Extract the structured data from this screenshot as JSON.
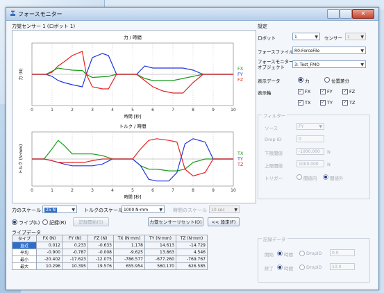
{
  "window": {
    "title": "フォースモニター",
    "close_label": "✕"
  },
  "left": {
    "heading": "力覚センサー 1 (ロボット 1)"
  },
  "chart_data": [
    {
      "type": "line",
      "title": "力 / 時間",
      "xlabel": "時間 [秒]",
      "ylabel": "力 (N)",
      "xlim": [
        0,
        10
      ],
      "x_ticks": [
        "0",
        "1",
        "2",
        "3",
        "4",
        "5",
        "6",
        "7",
        "8",
        "9",
        "10"
      ],
      "ylim": [
        -15,
        15
      ],
      "series": [
        {
          "name": "FX",
          "color": "#1a9a1a",
          "x": [
            0,
            0.7,
            1.0,
            1.3,
            1.6,
            2.0,
            2.5,
            2.7,
            3.0,
            3.5,
            3.8,
            4.2,
            4.8,
            5.2,
            5.6,
            6.0,
            6.5,
            7.0,
            7.5,
            8.0,
            8.5,
            9.0,
            10
          ],
          "y": [
            0,
            0,
            1.5,
            3,
            2.5,
            2,
            1.8,
            0,
            -1.5,
            -1.2,
            -1,
            0,
            0,
            0,
            -2,
            -3,
            -3,
            -3,
            -2,
            -1,
            0,
            0,
            0
          ]
        },
        {
          "name": "FY",
          "color": "#2233dd",
          "x": [
            0,
            0.7,
            1.0,
            1.3,
            1.6,
            2.0,
            2.5,
            2.7,
            3.0,
            3.5,
            3.8,
            4.2,
            4.8,
            5.2,
            5.6,
            6.0,
            6.5,
            7.0,
            7.5,
            8.0,
            8.5,
            9.0,
            10
          ],
          "y": [
            0,
            0,
            -1,
            -3,
            -4,
            -5,
            -6,
            0,
            8,
            10,
            9,
            0,
            0,
            0,
            4,
            3,
            3,
            3,
            3,
            2,
            0,
            0,
            0
          ]
        },
        {
          "name": "FZ",
          "color": "#e42222",
          "x": [
            0,
            0.7,
            1.0,
            1.3,
            1.6,
            2.0,
            2.5,
            2.7,
            3.0,
            3.5,
            3.8,
            4.2,
            4.8,
            5.2,
            5.6,
            6.0,
            6.5,
            7.0,
            7.5,
            8.0,
            8.5,
            9.0,
            10
          ],
          "y": [
            0,
            0,
            1,
            4,
            6,
            9,
            11,
            0,
            -6,
            -7,
            -7,
            0,
            0,
            0,
            -3,
            -6,
            -8,
            -9,
            -9,
            -4,
            0,
            0,
            0
          ]
        }
      ]
    },
    {
      "type": "line",
      "title": "トルク / 時間",
      "xlabel": "時間 [秒]",
      "ylabel": "トルク (N·mm)",
      "xlim": [
        0,
        10
      ],
      "x_ticks": [
        "0",
        "1",
        "2",
        "3",
        "4",
        "5",
        "6",
        "7",
        "8",
        "9",
        "10"
      ],
      "ylim": [
        -800,
        800
      ],
      "series": [
        {
          "name": "TX",
          "color": "#1a9a1a",
          "x": [
            0,
            0.6,
            1.0,
            1.3,
            1.6,
            2.0,
            2.6,
            3.0,
            3.5,
            4.0,
            4.5,
            5.0,
            5.4,
            5.8,
            6.2,
            6.8,
            7.2,
            7.6,
            8.0,
            8.6,
            9.0,
            10
          ],
          "y": [
            0,
            0,
            300,
            550,
            400,
            150,
            150,
            150,
            100,
            0,
            0,
            0,
            -200,
            -300,
            -300,
            -350,
            -350,
            -300,
            -100,
            0,
            0,
            0
          ]
        },
        {
          "name": "TY",
          "color": "#2233dd",
          "x": [
            0,
            0.6,
            1.0,
            1.3,
            1.6,
            2.0,
            2.6,
            3.0,
            3.5,
            4.0,
            4.5,
            5.0,
            5.4,
            5.8,
            6.2,
            6.8,
            7.2,
            7.6,
            8.0,
            8.6,
            9.0,
            10
          ],
          "y": [
            0,
            0,
            -50,
            -100,
            -150,
            -200,
            -200,
            -200,
            -150,
            0,
            0,
            0,
            -200,
            -600,
            -650,
            -650,
            -400,
            450,
            600,
            500,
            0,
            0
          ]
        },
        {
          "name": "TZ",
          "color": "#e42222",
          "x": [
            0,
            0.6,
            1.0,
            1.3,
            1.6,
            2.0,
            2.6,
            3.0,
            3.5,
            4.0,
            4.5,
            5.0,
            5.4,
            5.8,
            6.2,
            6.8,
            7.2,
            7.6,
            8.0,
            8.6,
            9.0,
            10
          ],
          "y": [
            0,
            0,
            -50,
            -100,
            -100,
            -100,
            -100,
            -50,
            0,
            0,
            0,
            0,
            300,
            550,
            600,
            550,
            500,
            -300,
            -500,
            -400,
            0,
            0
          ]
        }
      ]
    }
  ],
  "scales": {
    "force_label": "力のスケール",
    "force_value": "25 N",
    "torque_label": "トルクのスケール",
    "torque_value": "1000 N·mm",
    "time_label": "時間のスケール",
    "time_value": "10 sec"
  },
  "controls": {
    "radio_live": "ライブ(L)",
    "radio_record": "記録(R)",
    "btn_record_start": "記録開始(S)",
    "btn_reset_sensor": "力覚センサーリセット(O)",
    "btn_settings": "<< 設定(F)"
  },
  "table": {
    "caption": "ライブデータ",
    "headers": [
      "タイプ",
      "FX (N)",
      "FY (N)",
      "FZ (N)",
      "TX (N·mm)",
      "TY (N·mm)",
      "TZ (N·mm)"
    ],
    "rows": [
      [
        "直近",
        "0.012",
        "0.233",
        "-0.633",
        "1.178",
        "14.613",
        "-14.729"
      ],
      [
        "平均",
        "-0.900",
        "-0.787",
        "-0.008",
        "-9.625",
        "13.863",
        "4.546"
      ],
      [
        "最小",
        "-20.402",
        "-17.623",
        "-12.075",
        "-786.577",
        "-677.260",
        "-769.767"
      ],
      [
        "最大",
        "10.296",
        "10.395",
        "19.576",
        "655.954",
        "560.170",
        "626.585"
      ]
    ]
  },
  "settings": {
    "heading": "設定",
    "robot_label": "ロボット",
    "robot_value": "1",
    "sensor_label": "センサー",
    "sensor_value": "1",
    "file_label": "フォースファイル",
    "file_value": "R0:ForceFile",
    "monitor_label": "フォースモニター\nオブジェクト",
    "monitor_value": "3: Test_FMO",
    "display_label": "表示データ",
    "display_force": "力",
    "display_pos": "位置差分",
    "axis_label": "表示軸",
    "axes": [
      "FX",
      "FY",
      "FZ",
      "TX",
      "TY",
      "TZ"
    ],
    "filter_title": "フィルター",
    "source_label": "ソース",
    "source_value": "FY",
    "dropid_label": "Drop ID",
    "dropid_value": "0",
    "lower_label": "下限閾値",
    "lower_value": "-1000.000",
    "lower_unit": "N",
    "upper_label": "上限閾値",
    "upper_value": "1000.000",
    "upper_unit": "N",
    "trigger_label": "トリガー",
    "trigger_a": "閾値内",
    "trigger_b": "閾値外",
    "record_title": "記録データ",
    "start_label": "開始",
    "start_a": "時間",
    "start_b": "DropID",
    "start_value": "0.0",
    "end_label": "終了",
    "end_a": "時間",
    "end_b": "DropID",
    "end_value": "10.0"
  }
}
